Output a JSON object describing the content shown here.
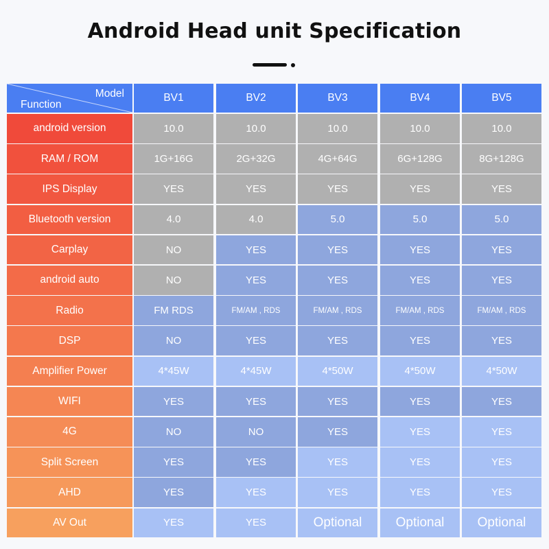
{
  "title": "Android Head unit Specification",
  "corner": {
    "model_label": "Model",
    "function_label": "Function"
  },
  "models": [
    "BV1",
    "BV2",
    "BV3",
    "BV4",
    "BV5"
  ],
  "colors": {
    "header": "#4a7ef2",
    "gray": "#b0b0b0",
    "mid_blue": "#8ea6dd",
    "light_blue": "#a8c1f5",
    "label_gradient_top": "#f04a3a",
    "label_gradient_bottom": "#f7a05e"
  },
  "rows": [
    {
      "label": "android version",
      "values": [
        "10.0",
        "10.0",
        "10.0",
        "10.0",
        "10.0"
      ],
      "tones": [
        "gray",
        "gray",
        "gray",
        "gray",
        "gray"
      ]
    },
    {
      "label": "RAM / ROM",
      "values": [
        "1G+16G",
        "2G+32G",
        "4G+64G",
        "6G+128G",
        "8G+128G"
      ],
      "tones": [
        "gray",
        "gray",
        "gray",
        "gray",
        "gray"
      ]
    },
    {
      "label": "IPS Display",
      "values": [
        "YES",
        "YES",
        "YES",
        "YES",
        "YES"
      ],
      "tones": [
        "gray",
        "gray",
        "gray",
        "gray",
        "gray"
      ]
    },
    {
      "label": "Bluetooth version",
      "values": [
        "4.0",
        "4.0",
        "5.0",
        "5.0",
        "5.0"
      ],
      "tones": [
        "gray",
        "gray",
        "mid",
        "mid",
        "mid"
      ]
    },
    {
      "label": "Carplay",
      "values": [
        "NO",
        "YES",
        "YES",
        "YES",
        "YES"
      ],
      "tones": [
        "gray",
        "mid",
        "mid",
        "mid",
        "mid"
      ]
    },
    {
      "label": "android auto",
      "values": [
        "NO",
        "YES",
        "YES",
        "YES",
        "YES"
      ],
      "tones": [
        "gray",
        "mid",
        "mid",
        "mid",
        "mid"
      ]
    },
    {
      "label": "Radio",
      "values": [
        "FM RDS",
        "FM/AM , RDS",
        "FM/AM , RDS",
        "FM/AM , RDS",
        "FM/AM , RDS"
      ],
      "tones": [
        "mid",
        "mid",
        "mid",
        "mid",
        "mid"
      ]
    },
    {
      "label": "DSP",
      "values": [
        "NO",
        "YES",
        "YES",
        "YES",
        "YES"
      ],
      "tones": [
        "mid",
        "mid",
        "mid",
        "mid",
        "mid"
      ]
    },
    {
      "label": "Amplifier Power",
      "values": [
        "4*45W",
        "4*45W",
        "4*50W",
        "4*50W",
        "4*50W"
      ],
      "tones": [
        "light",
        "light",
        "light",
        "light",
        "light"
      ]
    },
    {
      "label": "WIFI",
      "values": [
        "YES",
        "YES",
        "YES",
        "YES",
        "YES"
      ],
      "tones": [
        "mid",
        "mid",
        "mid",
        "mid",
        "mid"
      ]
    },
    {
      "label": "4G",
      "values": [
        "NO",
        "NO",
        "YES",
        "YES",
        "YES"
      ],
      "tones": [
        "mid",
        "mid",
        "mid",
        "light",
        "light"
      ]
    },
    {
      "label": "Split Screen",
      "values": [
        "YES",
        "YES",
        "YES",
        "YES",
        "YES"
      ],
      "tones": [
        "mid",
        "mid",
        "light",
        "light",
        "light"
      ]
    },
    {
      "label": "AHD",
      "values": [
        "YES",
        "YES",
        "YES",
        "YES",
        "YES"
      ],
      "tones": [
        "mid",
        "light",
        "light",
        "light",
        "light"
      ]
    },
    {
      "label": "AV Out",
      "values": [
        "YES",
        "YES",
        "Optional",
        "Optional",
        "Optional"
      ],
      "tones": [
        "light",
        "light",
        "light",
        "light",
        "light"
      ]
    }
  ]
}
